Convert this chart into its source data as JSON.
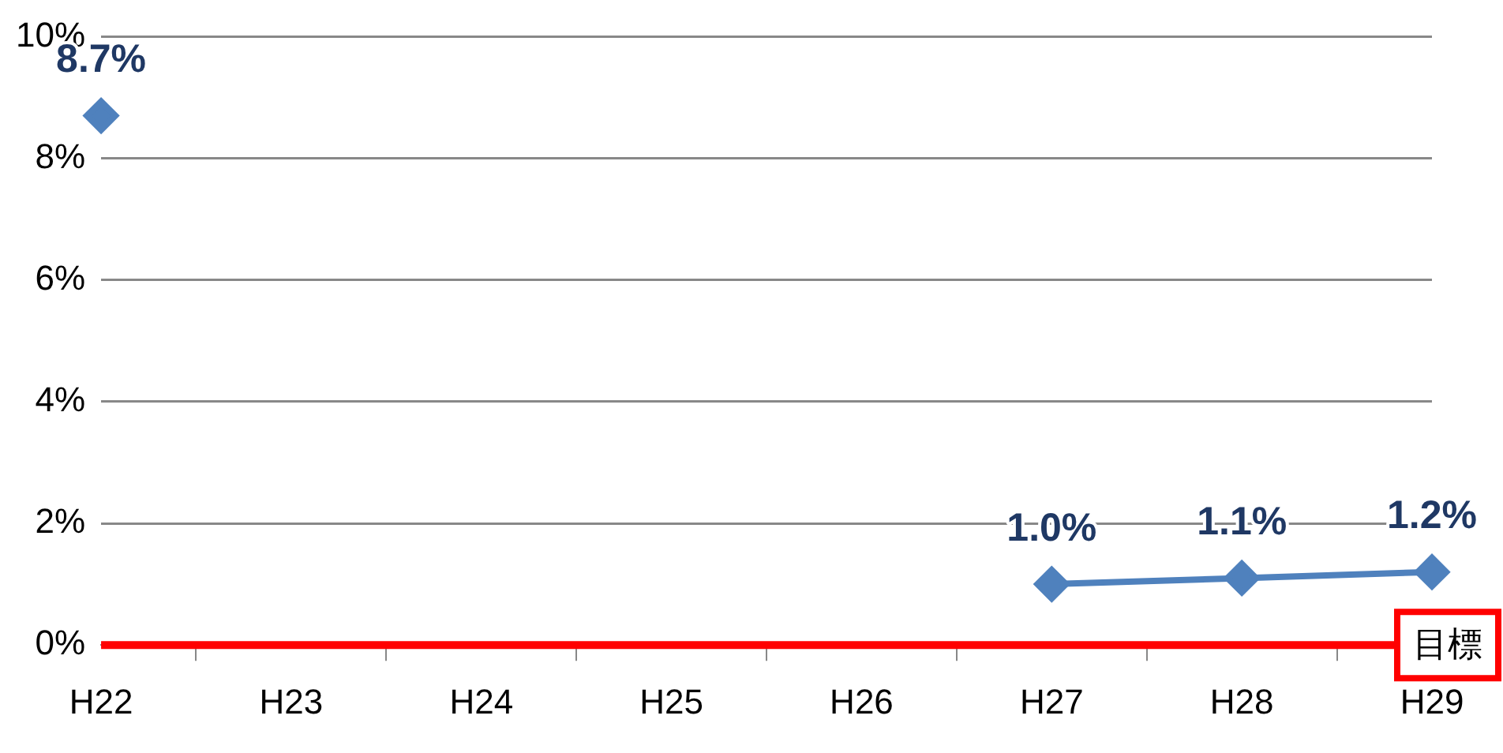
{
  "chart_data": {
    "type": "line",
    "categories": [
      "H22",
      "H23",
      "H24",
      "H25",
      "H26",
      "H27",
      "H28",
      "H29"
    ],
    "series": [
      {
        "color": "#4f81bd",
        "values": [
          8.7,
          null,
          null,
          null,
          null,
          1.0,
          1.1,
          1.2
        ]
      }
    ],
    "ylim": [
      0,
      10
    ],
    "yticks": [
      {
        "value": 0,
        "label": "0%"
      },
      {
        "value": 2,
        "label": "2%"
      },
      {
        "value": 4,
        "label": "4%"
      },
      {
        "value": 6,
        "label": "6%"
      },
      {
        "value": 8,
        "label": "8%"
      },
      {
        "value": 10,
        "label": "10%"
      }
    ],
    "grid": "y",
    "legend": false,
    "marker": "diamond",
    "line_style": "solid",
    "value_labels": [
      "8.7%",
      null,
      null,
      null,
      null,
      "1.0%",
      "1.1%",
      "1.2%"
    ],
    "ref_lines": [
      {
        "axis": "y",
        "value": 0,
        "label": "目標",
        "color": "#ff0000",
        "line_style": "solid"
      }
    ]
  }
}
